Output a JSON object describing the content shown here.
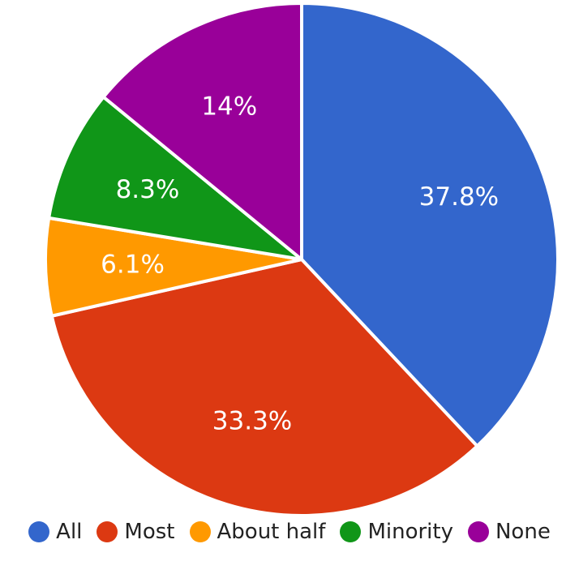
{
  "chart_data": {
    "type": "pie",
    "slices": [
      {
        "label": "All",
        "value": 37.8,
        "display": "37.8%",
        "color": "#3366cc"
      },
      {
        "label": "Most",
        "value": 33.3,
        "display": "33.3%",
        "color": "#dc3912"
      },
      {
        "label": "About half",
        "value": 6.1,
        "display": "6.1%",
        "color": "#ff9900"
      },
      {
        "label": "Minority",
        "value": 8.3,
        "display": "8.3%",
        "color": "#109618"
      },
      {
        "label": "None",
        "value": 14,
        "display": "14%",
        "color": "#990099"
      }
    ],
    "legend_position": "bottom",
    "start": "top",
    "direction": "clockwise"
  }
}
